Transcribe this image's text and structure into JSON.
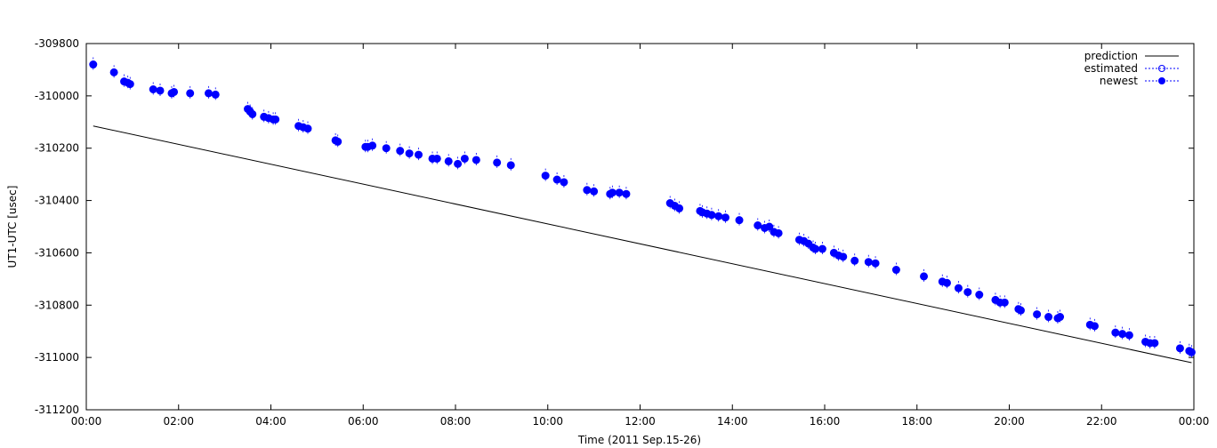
{
  "chart_data": {
    "type": "scatter",
    "title": "",
    "xlabel": "Time (2011 Sep.15-26)",
    "ylabel": "UT1-UTC [usec]",
    "xlim": [
      0,
      24
    ],
    "ylim": [
      -311200,
      -309800
    ],
    "x_ticks": [
      0,
      2,
      4,
      6,
      8,
      10,
      12,
      14,
      16,
      18,
      20,
      22,
      24
    ],
    "x_tick_labels": [
      "00:00",
      "02:00",
      "04:00",
      "06:00",
      "08:00",
      "10:00",
      "12:00",
      "14:00",
      "16:00",
      "18:00",
      "20:00",
      "22:00",
      "00:00"
    ],
    "y_ticks": [
      -309800,
      -310000,
      -310200,
      -310400,
      -310600,
      -310800,
      -311000,
      -311200
    ],
    "y_tick_labels": [
      "-309800",
      "-310000",
      "-310200",
      "-310400",
      "-310600",
      "-310800",
      "-311000",
      "-311200"
    ],
    "grid": false,
    "legend_position": "top-right",
    "series": [
      {
        "name": "prediction",
        "style": "line",
        "color": "#000000",
        "x": [
          0.15,
          23.95
        ],
        "y": [
          -310115,
          -311020
        ]
      },
      {
        "name": "estimated",
        "style": "open-circle",
        "color": "#0000ff",
        "x": [],
        "y": []
      },
      {
        "name": "newest",
        "style": "filled-circle",
        "color": "#0000ff",
        "x": [
          0.15,
          0.6,
          0.82,
          0.9,
          0.95,
          1.45,
          1.6,
          1.85,
          1.9,
          2.25,
          2.65,
          2.8,
          3.5,
          3.55,
          3.6,
          3.85,
          3.95,
          4.05,
          4.1,
          4.6,
          4.7,
          4.8,
          5.4,
          5.45,
          6.05,
          6.1,
          6.2,
          6.5,
          6.8,
          7.0,
          7.2,
          7.5,
          7.6,
          7.85,
          8.05,
          8.2,
          8.45,
          8.9,
          9.2,
          9.95,
          10.2,
          10.35,
          10.85,
          11.0,
          11.35,
          11.4,
          11.55,
          11.7,
          12.65,
          12.75,
          12.85,
          13.3,
          13.35,
          13.45,
          13.55,
          13.7,
          13.85,
          14.15,
          14.55,
          14.7,
          14.8,
          14.9,
          15.0,
          15.45,
          15.55,
          15.65,
          15.75,
          15.8,
          15.95,
          16.2,
          16.3,
          16.4,
          16.65,
          16.95,
          17.1,
          17.55,
          18.15,
          18.55,
          18.65,
          18.9,
          19.1,
          19.35,
          19.7,
          19.8,
          19.9,
          20.2,
          20.25,
          20.6,
          20.85,
          21.05,
          21.1,
          21.75,
          21.85,
          22.3,
          22.45,
          22.6,
          22.95,
          23.05,
          23.15,
          23.7,
          23.9,
          23.95
        ],
        "y": [
          -309880,
          -309910,
          -309945,
          -309950,
          -309955,
          -309975,
          -309980,
          -309990,
          -309985,
          -309990,
          -309990,
          -309995,
          -310050,
          -310060,
          -310070,
          -310080,
          -310085,
          -310090,
          -310090,
          -310115,
          -310120,
          -310125,
          -310170,
          -310175,
          -310195,
          -310195,
          -310190,
          -310200,
          -310210,
          -310220,
          -310225,
          -310240,
          -310240,
          -310250,
          -310260,
          -310240,
          -310245,
          -310255,
          -310265,
          -310305,
          -310320,
          -310330,
          -310360,
          -310365,
          -310375,
          -310370,
          -310370,
          -310375,
          -310410,
          -310420,
          -310430,
          -310440,
          -310445,
          -310450,
          -310455,
          -310460,
          -310465,
          -310475,
          -310495,
          -310505,
          -310500,
          -310520,
          -310525,
          -310550,
          -310555,
          -310565,
          -310580,
          -310585,
          -310585,
          -310600,
          -310610,
          -310615,
          -310630,
          -310635,
          -310640,
          -310665,
          -310690,
          -310710,
          -310715,
          -310735,
          -310750,
          -310760,
          -310780,
          -310790,
          -310790,
          -310815,
          -310820,
          -310835,
          -310845,
          -310850,
          -310845,
          -310875,
          -310880,
          -310905,
          -310910,
          -310915,
          -310940,
          -310945,
          -310945,
          -310965,
          -310975,
          -310980
        ]
      }
    ]
  }
}
